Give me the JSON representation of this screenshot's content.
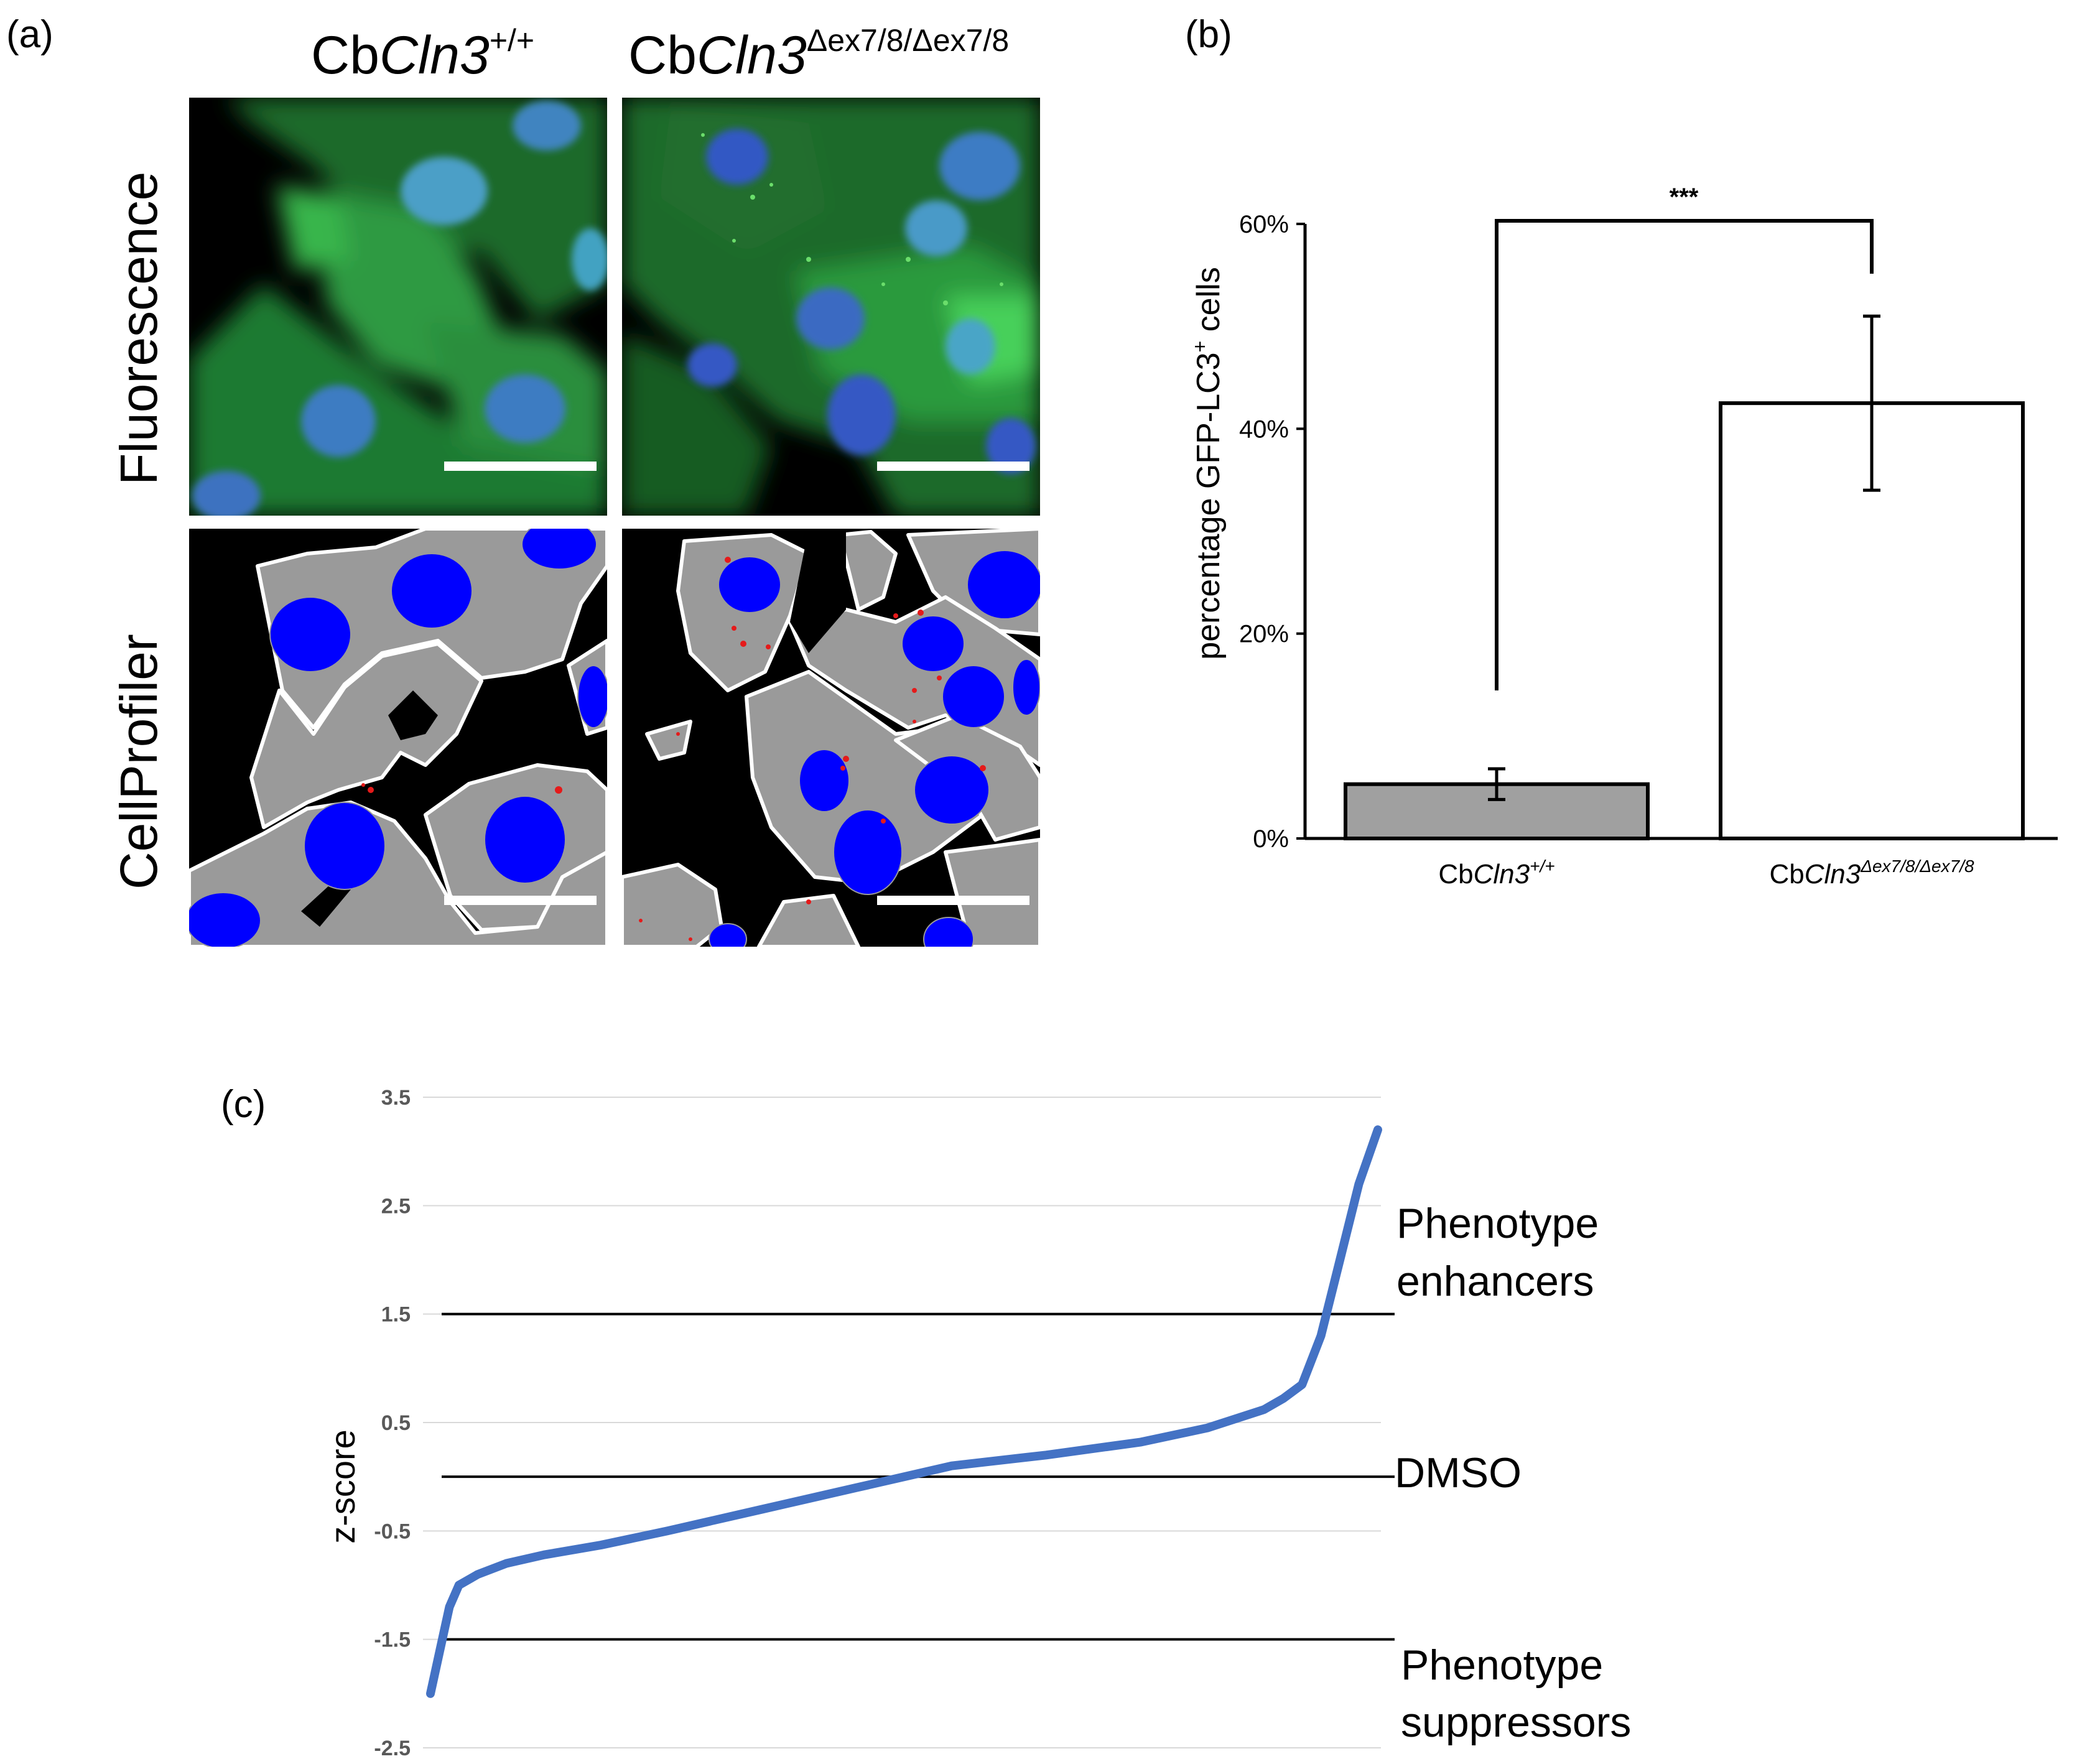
{
  "panel_a": {
    "letter": "(a)",
    "columns": [
      {
        "prefix": "Cb",
        "gene": "Cln3",
        "sup": "+/+"
      },
      {
        "prefix": "Cb",
        "gene": "Cln3",
        "sup": "Δex7/8/Δex7/8"
      }
    ],
    "rows": [
      "Fluorescence",
      "CellProfiler"
    ],
    "colors": {
      "gfp": "#2fb24a",
      "nucleus_fluor": "#3f8fd0",
      "cell_mask": "#9a9a9a",
      "nucleus_mask": "#0000ff",
      "puncta": "#e51a1a",
      "background": "#000000",
      "scale_bar": "#ffffff"
    }
  },
  "panel_b": {
    "letter": "(b)",
    "ylabel_pre": "percentage GFP-LC3",
    "ylabel_sup": "+",
    "ylabel_post": " cells",
    "yticks": [
      "0%",
      "20%",
      "40%",
      "60%"
    ],
    "significance": "***",
    "categories": [
      {
        "prefix": "Cb",
        "gene": "Cln3",
        "sup": "+/+"
      },
      {
        "prefix": "Cb",
        "gene": "Cln3",
        "sup": "Δex7/8/Δex7/8"
      }
    ]
  },
  "panel_c": {
    "letter": "(c)",
    "ylabel": "z-score",
    "yticks": [
      "3.5",
      "2.5",
      "1.5",
      "0.5",
      "-0.5",
      "-1.5",
      "-2.5"
    ],
    "annotations": {
      "enhancers_1": "Phenotype",
      "enhancers_2": "enhancers",
      "dmso": "DMSO",
      "suppressors_1": "Phenotype",
      "suppressors_2": "suppressors"
    },
    "curve_color": "#4472c4"
  },
  "chart_data": [
    {
      "type": "bar",
      "categories": [
        "CbCln3+/+",
        "CbCln3Δex7/8/Δex7/8"
      ],
      "values": [
        0.053,
        0.425
      ],
      "error": [
        0.015,
        0.085
      ],
      "ylim": [
        0,
        0.6
      ],
      "ylabel": "percentage GFP-LC3+ cells",
      "colors": [
        "#a0a0a0",
        "#ffffff"
      ],
      "significance": "***"
    },
    {
      "type": "scatter",
      "ylabel": "z-score",
      "ylim": [
        -2.5,
        3.5
      ],
      "grid": true,
      "reference_lines": [
        1.5,
        0,
        -1.5
      ],
      "profile": {
        "rank_fraction": [
          0.0,
          0.01,
          0.02,
          0.03,
          0.05,
          0.08,
          0.12,
          0.18,
          0.25,
          0.35,
          0.45,
          0.5,
          0.55,
          0.65,
          0.75,
          0.82,
          0.88,
          0.9,
          0.92,
          0.94,
          0.96,
          0.98,
          1.0
        ],
        "z": [
          -2.0,
          -1.6,
          -1.2,
          -1.0,
          -0.9,
          -0.8,
          -0.72,
          -0.63,
          -0.5,
          -0.3,
          -0.1,
          0.0,
          0.1,
          0.2,
          0.32,
          0.45,
          0.62,
          0.72,
          0.85,
          1.3,
          2.0,
          2.7,
          3.2
        ]
      }
    }
  ]
}
